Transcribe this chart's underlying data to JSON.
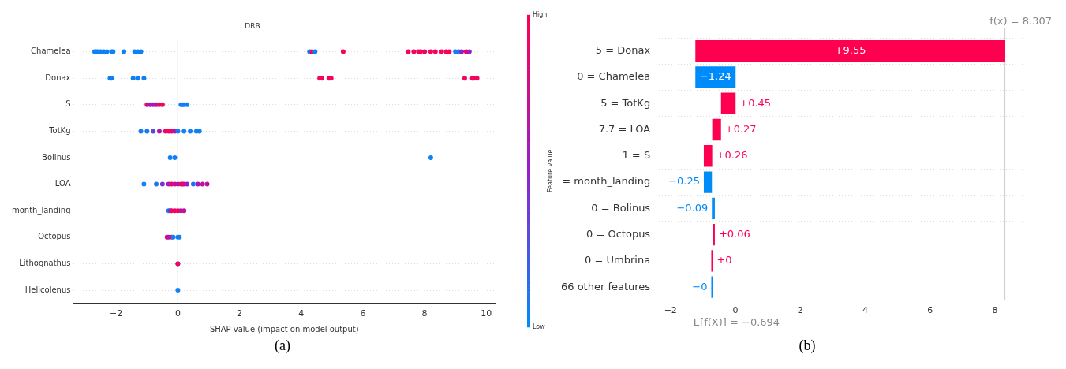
{
  "chart_data": [
    {
      "type": "scatter",
      "title": "DRB",
      "xlabel": "SHAP value (impact on model output)",
      "clabel": "Feature value",
      "orientation": "horizontal",
      "categories": [
        "Chamelea",
        "Donax",
        "S",
        "TotKg",
        "Bolinus",
        "LOA",
        "month_landing",
        "Octopus",
        "Lithognathus",
        "Helicolenus"
      ],
      "xlim": [
        -3.4,
        10.3
      ],
      "xticks": [
        -2,
        0,
        2,
        4,
        6,
        8,
        10
      ],
      "clim": [
        0,
        1
      ],
      "cticks": [
        {
          "value": 0,
          "label": "Low"
        },
        {
          "value": 1,
          "label": "High"
        }
      ],
      "ref_lines": [
        {
          "axis": "x",
          "value": 0,
          "color": "#999999"
        }
      ],
      "grid": "y",
      "legend": false,
      "marker": "circle",
      "annotations": [
        "(a)"
      ],
      "series": [
        {
          "type": "scatter",
          "x": [
            "Chamelea",
            "Chamelea",
            "Chamelea",
            "Chamelea",
            "Chamelea",
            "Chamelea",
            "Chamelea",
            "Chamelea",
            "Chamelea",
            "Chamelea",
            "Chamelea",
            "Chamelea",
            "Chamelea",
            "Chamelea",
            "Chamelea",
            "Chamelea",
            "Chamelea",
            "Chamelea",
            "Chamelea",
            "Chamelea",
            "Chamelea",
            "Chamelea",
            "Chamelea",
            "Chamelea",
            "Chamelea",
            "Chamelea",
            "Chamelea",
            "Chamelea",
            "Chamelea",
            "Chamelea",
            "Chamelea",
            "Donax",
            "Donax",
            "Donax",
            "Donax",
            "Donax",
            "Donax",
            "Donax",
            "Donax",
            "Donax",
            "Donax",
            "Donax",
            "Donax",
            "Donax",
            "S",
            "S",
            "S",
            "S",
            "S",
            "S",
            "S",
            "S",
            "S",
            "S",
            "TotKg",
            "TotKg",
            "TotKg",
            "TotKg",
            "TotKg",
            "TotKg",
            "TotKg",
            "TotKg",
            "TotKg",
            "TotKg",
            "TotKg",
            "TotKg",
            "TotKg",
            "Bolinus",
            "Bolinus",
            "Bolinus",
            "LOA",
            "LOA",
            "LOA",
            "LOA",
            "LOA",
            "LOA",
            "LOA",
            "LOA",
            "LOA",
            "LOA",
            "LOA",
            "LOA",
            "LOA",
            "LOA",
            "LOA",
            "month_landing",
            "month_landing",
            "month_landing",
            "month_landing",
            "month_landing",
            "month_landing",
            "month_landing",
            "Octopus",
            "Octopus",
            "Octopus",
            "Octopus",
            "Octopus",
            "Octopus",
            "Lithognathus",
            "Lithognathus",
            "Helicolenus"
          ],
          "values": [
            -2.7,
            -2.65,
            -2.6,
            -2.5,
            -2.4,
            -2.3,
            -2.15,
            -2.1,
            -1.75,
            -1.4,
            -1.3,
            -1.2,
            4.27,
            4.35,
            4.45,
            5.36,
            7.47,
            7.65,
            7.8,
            7.87,
            8.0,
            8.2,
            8.35,
            8.55,
            8.7,
            8.8,
            9.0,
            9.1,
            9.2,
            9.35,
            9.45,
            -2.2,
            -2.15,
            -1.45,
            -1.3,
            -1.1,
            4.6,
            4.67,
            4.9,
            4.97,
            9.3,
            9.55,
            9.6,
            9.7,
            -1.0,
            -0.9,
            -0.8,
            -0.7,
            -0.6,
            -0.5,
            0.1,
            0.15,
            0.2,
            0.3,
            -1.2,
            -1.0,
            -0.8,
            -0.6,
            -0.4,
            -0.3,
            -0.2,
            -0.1,
            0.0,
            0.2,
            0.4,
            0.6,
            0.7,
            -0.25,
            -0.1,
            8.2,
            -1.1,
            -0.7,
            -0.5,
            -0.3,
            -0.2,
            -0.1,
            0.0,
            0.1,
            0.15,
            0.2,
            0.3,
            0.5,
            0.65,
            0.8,
            0.95,
            -0.3,
            -0.25,
            -0.2,
            -0.1,
            0.0,
            0.1,
            0.2,
            -0.35,
            -0.3,
            -0.2,
            -0.15,
            0.0,
            0.05,
            0.0,
            0.0,
            0.0
          ],
          "cvalues": [
            0.05,
            0.05,
            0.05,
            0.05,
            0.05,
            0.05,
            0.05,
            0.05,
            0.05,
            0.05,
            0.05,
            0.05,
            0.05,
            0.95,
            0.05,
            0.95,
            0.95,
            0.95,
            0.95,
            0.95,
            0.95,
            0.95,
            0.95,
            0.95,
            0.95,
            0.95,
            0.05,
            0.05,
            0.5,
            0.95,
            0.5,
            0.05,
            0.05,
            0.05,
            0.05,
            0.05,
            0.95,
            0.95,
            0.95,
            0.95,
            0.95,
            0.95,
            0.95,
            0.95,
            0.8,
            0.6,
            0.5,
            0.7,
            0.9,
            0.95,
            0.05,
            0.05,
            0.05,
            0.05,
            0.05,
            0.1,
            0.3,
            0.6,
            0.9,
            0.95,
            0.9,
            0.6,
            0.1,
            0.05,
            0.05,
            0.05,
            0.05,
            0.05,
            0.05,
            0.05,
            0.05,
            0.1,
            0.4,
            0.6,
            0.9,
            0.7,
            0.6,
            0.9,
            0.95,
            0.8,
            0.5,
            0.1,
            0.6,
            0.7,
            0.7,
            0.05,
            0.4,
            0.9,
            0.9,
            0.95,
            0.7,
            0.7,
            0.95,
            0.6,
            0.95,
            0.05,
            0.05,
            0.05,
            0.05,
            0.95,
            0.05
          ]
        }
      ]
    },
    {
      "type": "bar",
      "orientation": "horizontal",
      "categories": [
        "5 = Donax",
        "0 = Chamelea",
        "5 = TotKg",
        "7.7 = LOA",
        "1 = S",
        "= month_landing",
        "0 = Bolinus",
        "0 = Octopus",
        "0 = Umbrina",
        "66 other features"
      ],
      "values": [
        9.55,
        -1.24,
        0.45,
        0.27,
        0.26,
        -0.25,
        -0.09,
        0.06,
        0,
        0
      ],
      "base": [
        -1.234,
        0.006,
        -0.444,
        -0.714,
        -0.974,
        -0.724,
        -0.634,
        -0.694,
        -0.694,
        -0.694
      ],
      "colors": [
        "#ff0051",
        "#008bfb",
        "#ff0051",
        "#ff0051",
        "#ff0051",
        "#008bfb",
        "#008bfb",
        "#ff0051",
        "#ff0051",
        "#008bfb"
      ],
      "value_labels": [
        "+9.55",
        "−1.24",
        "+0.45",
        "+0.27",
        "+0.26",
        "−0.25",
        "−0.09",
        "+0.06",
        "+0",
        "−0"
      ],
      "xlim": [
        -2.55,
        8.9
      ],
      "xticks": [
        -2,
        0,
        2,
        4,
        6,
        8
      ],
      "ref_lines": [
        {
          "axis": "x",
          "value": -0.694,
          "label": "E[f(X)] = −0.694",
          "color": "#cccccc"
        },
        {
          "axis": "x",
          "value": 8.307,
          "label": "f(x) = 8.307",
          "color": "#cccccc"
        }
      ],
      "grid": "y",
      "legend": false,
      "annotations": [
        "(b)"
      ]
    }
  ]
}
